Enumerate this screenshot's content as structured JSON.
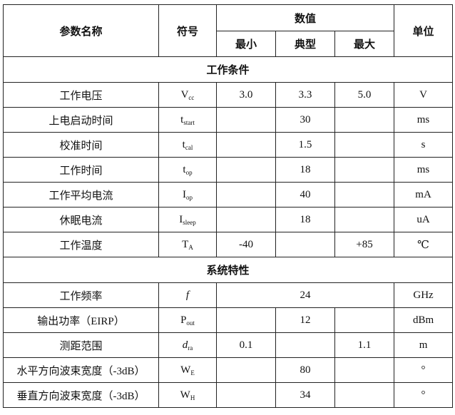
{
  "header": {
    "param_name": "参数名称",
    "symbol": "符号",
    "value": "数值",
    "unit": "单位",
    "min": "最小",
    "typ": "典型",
    "max": "最大"
  },
  "sections": [
    {
      "title": "工作条件",
      "rows": [
        {
          "name": "工作电压",
          "sym": "V",
          "sub": "cc",
          "min": "3.0",
          "typ": "3.3",
          "max": "5.0",
          "unit": "V"
        },
        {
          "name": "上电启动时间",
          "sym": "t",
          "sub": "start",
          "min": "",
          "typ": "30",
          "max": "",
          "unit": "ms"
        },
        {
          "name": "校准时间",
          "sym": "t",
          "sub": "cal",
          "min": "",
          "typ": "1.5",
          "max": "",
          "unit": "s"
        },
        {
          "name": "工作时间",
          "sym": "t",
          "sub": "op",
          "min": "",
          "typ": "18",
          "max": "",
          "unit": "ms"
        },
        {
          "name": "工作平均电流",
          "sym": "I",
          "sub": "op",
          "min": "",
          "typ": "40",
          "max": "",
          "unit": "mA"
        },
        {
          "name": "休眠电流",
          "sym": "I",
          "sub": "sleep",
          "min": "",
          "typ": "18",
          "max": "",
          "unit": "uA"
        },
        {
          "name": "工作温度",
          "sym": "T",
          "sub": "A",
          "min": "-40",
          "typ": "",
          "max": "+85",
          "unit": "℃"
        }
      ]
    },
    {
      "title": "系统特性",
      "freq": {
        "name": "工作频率",
        "sym": "f",
        "value": "24",
        "unit": "GHz"
      },
      "rows": [
        {
          "name": "输出功率（EIRP）",
          "sym": "P",
          "sub": "out",
          "min": "",
          "typ": "12",
          "max": "",
          "unit": "dBm"
        },
        {
          "name": "测距范围",
          "sym": "d",
          "sub": "ra",
          "min": "0.1",
          "typ": "",
          "max": "1.1",
          "unit": "m"
        },
        {
          "name": "水平方向波束宽度（-3dB）",
          "sym": "W",
          "sub": "E",
          "min": "",
          "typ": "80",
          "max": "",
          "unit": "°"
        },
        {
          "name": "垂直方向波束宽度（-3dB）",
          "sym": "W",
          "sub": "H",
          "min": "",
          "typ": "34",
          "max": "",
          "unit": "°"
        }
      ]
    }
  ]
}
